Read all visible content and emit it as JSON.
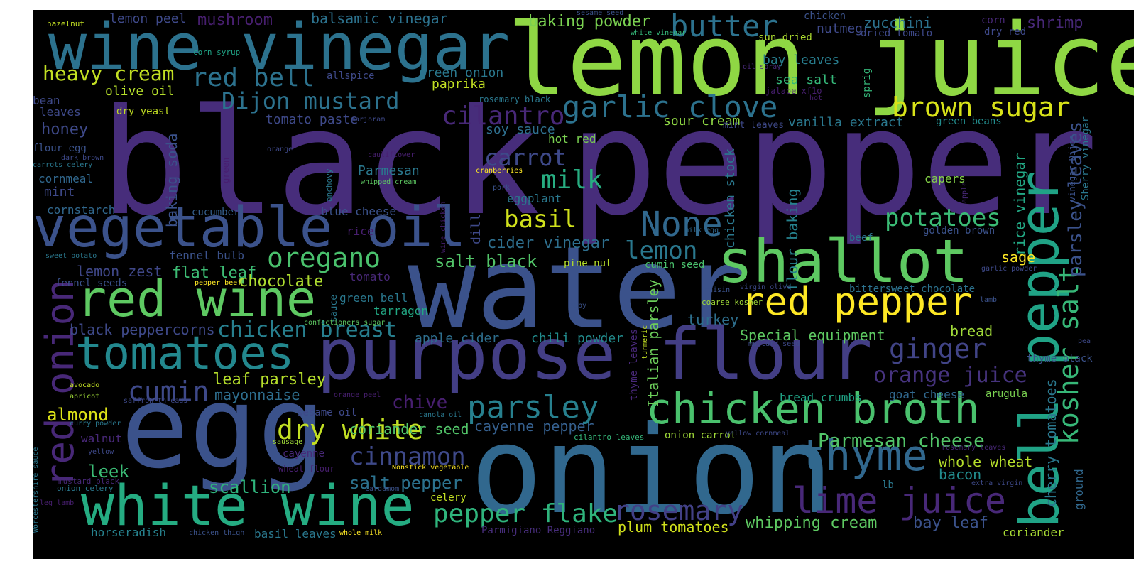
{
  "words": [
    {
      "text": "black",
      "color": "#472d7b"
    },
    {
      "text": "pepper",
      "color": "#472d7b"
    },
    {
      "text": "lemon juice",
      "color": "#8fd744"
    },
    {
      "text": "wine vinegar",
      "color": "#2c728e"
    },
    {
      "text": "water",
      "color": "#3b528b"
    },
    {
      "text": "egg",
      "color": "#3b528b"
    },
    {
      "text": "onion",
      "color": "#31688e"
    },
    {
      "text": "purpose flour",
      "color": "#433e85"
    },
    {
      "text": "vegetable oil",
      "color": "#3b528b"
    },
    {
      "text": "white wine",
      "color": "#25ac82"
    },
    {
      "text": "shallot",
      "color": "#5ec962"
    },
    {
      "text": "red wine",
      "color": "#5ec962"
    },
    {
      "text": "tomatoes",
      "color": "#23888e"
    },
    {
      "text": "chicken broth",
      "color": "#4ac16d"
    },
    {
      "text": "red pepper",
      "color": "#fde725"
    },
    {
      "text": "bell pepper",
      "color": "#20a386"
    },
    {
      "text": "red onion",
      "color": "#482878"
    },
    {
      "text": "thyme",
      "color": "#31688e"
    },
    {
      "text": "lime juice",
      "color": "#482878"
    },
    {
      "text": "butter",
      "color": "#2c728e"
    },
    {
      "text": "garlic clove",
      "color": "#2c728e"
    },
    {
      "text": "brown sugar",
      "color": "#d8e219"
    },
    {
      "text": "red bell",
      "color": "#2c728e"
    },
    {
      "text": "heavy cream",
      "color": "#c2df23"
    },
    {
      "text": "Dijon mustard",
      "color": "#2c728e"
    },
    {
      "text": "oregano",
      "color": "#4ac16d"
    },
    {
      "text": "None",
      "color": "#31688e"
    },
    {
      "text": "potatoes",
      "color": "#3bbb75"
    },
    {
      "text": "ginger",
      "color": "#414487"
    },
    {
      "text": "parsley",
      "color": "#27808e"
    },
    {
      "text": "dry white",
      "color": "#c2df23"
    },
    {
      "text": "cumin",
      "color": "#3e4989"
    },
    {
      "text": "cinnamon",
      "color": "#3e4989"
    },
    {
      "text": "rosemary",
      "color": "#424086"
    },
    {
      "text": "pepper flake",
      "color": "#2fb47c"
    },
    {
      "text": "milk",
      "color": "#27ad81"
    },
    {
      "text": "basil",
      "color": "#d0e11c"
    },
    {
      "text": "carrot",
      "color": "#3e4989"
    },
    {
      "text": "cilantro",
      "color": "#482878"
    },
    {
      "text": "lemon",
      "color": "#2a788e"
    },
    {
      "text": "kosher salt",
      "color": "#37b878"
    },
    {
      "text": "parsley leaves",
      "color": "#3b528b"
    },
    {
      "text": "orange juice",
      "color": "#46337e"
    },
    {
      "text": "Parmesan cheese",
      "color": "#52c569"
    },
    {
      "text": "chicken breast",
      "color": "#277f8e"
    },
    {
      "text": "salt black",
      "color": "#52c569"
    },
    {
      "text": "cider vinegar",
      "color": "#2e6f8e"
    },
    {
      "text": "chocolate",
      "color": "#addc30"
    },
    {
      "text": "flat leaf",
      "color": "#3dbc74"
    },
    {
      "text": "lemon zest",
      "color": "#3f4788"
    },
    {
      "text": "black peppercorns",
      "color": "#3e4989"
    },
    {
      "text": "honey",
      "color": "#3e4989"
    },
    {
      "text": "leaf parsley",
      "color": "#b5de2b"
    },
    {
      "text": "mayonnaise",
      "color": "#2e6e8e"
    },
    {
      "text": "almond",
      "color": "#dde318"
    },
    {
      "text": "chive",
      "color": "#481f70"
    },
    {
      "text": "coriander seed",
      "color": "#52c569"
    },
    {
      "text": "cayenne pepper",
      "color": "#355f8d"
    },
    {
      "text": "salt pepper",
      "color": "#2c728e"
    },
    {
      "text": "scallion",
      "color": "#2fb47c"
    },
    {
      "text": "leek",
      "color": "#3bbb75"
    },
    {
      "text": "whipping cream",
      "color": "#5ec962"
    },
    {
      "text": "plum tomatoes",
      "color": "#d0e11c"
    },
    {
      "text": "bay leaf",
      "color": "#3b528b"
    },
    {
      "text": "whole wheat",
      "color": "#b5de2b"
    },
    {
      "text": "bacon",
      "color": "#228c8d"
    },
    {
      "text": "Special equipment",
      "color": "#5ec962"
    },
    {
      "text": "bread",
      "color": "#a0da39"
    },
    {
      "text": "sage",
      "color": "#fde725"
    },
    {
      "text": "turkey",
      "color": "#2e6f8e"
    },
    {
      "text": "Italian parsley",
      "color": "#6ccd5a"
    },
    {
      "text": "chicken stock",
      "color": "#2a788e"
    },
    {
      "text": "flour baking",
      "color": "#26828e"
    },
    {
      "text": "rice vinegar",
      "color": "#22a884"
    },
    {
      "text": "cherry tomatoes",
      "color": "#2a788e"
    },
    {
      "text": "baking soda",
      "color": "#3b528b"
    },
    {
      "text": "tomato paste",
      "color": "#3e4989"
    },
    {
      "text": "soy sauce",
      "color": "#2e6f8e"
    },
    {
      "text": "sour cream",
      "color": "#8fd744"
    },
    {
      "text": "vanilla extract",
      "color": "#2a788e"
    },
    {
      "text": "baking powder",
      "color": "#7ad151"
    },
    {
      "text": "zucchini",
      "color": "#2c728e"
    },
    {
      "text": "shrimp",
      "color": "#482878"
    },
    {
      "text": "balsamic vinegar",
      "color": "#2c728e"
    },
    {
      "text": "mushroom",
      "color": "#481f70"
    },
    {
      "text": "lemon peel",
      "color": "#3e4989"
    },
    {
      "text": "green onion",
      "color": "#2a788e"
    },
    {
      "text": "paprika",
      "color": "#c2df23"
    },
    {
      "text": "bay leaves",
      "color": "#287d8e"
    },
    {
      "text": "sea salt",
      "color": "#35b779"
    },
    {
      "text": "nutmeg",
      "color": "#3e4989"
    },
    {
      "text": "olive oil",
      "color": "#b5de2b"
    },
    {
      "text": "eggplant",
      "color": "#2a788e"
    },
    {
      "text": "Parmesan",
      "color": "#2a788e"
    },
    {
      "text": "hot red",
      "color": "#7ad151"
    },
    {
      "text": "capers",
      "color": "#86d549"
    },
    {
      "text": "goat cheese",
      "color": "#31688e"
    },
    {
      "text": "bread crumbs",
      "color": "#20a486"
    },
    {
      "text": "apple cider",
      "color": "#2e6f8e"
    },
    {
      "text": "chili powder",
      "color": "#228c8d"
    },
    {
      "text": "tarragon",
      "color": "#22a884"
    },
    {
      "text": "tomato",
      "color": "#482878"
    },
    {
      "text": "green bell",
      "color": "#2a788e"
    },
    {
      "text": "blue cheese",
      "color": "#3b528b"
    },
    {
      "text": "cucumber",
      "color": "#355f8d"
    },
    {
      "text": "cornstarch",
      "color": "#31688e"
    },
    {
      "text": "mint",
      "color": "#3e4989"
    },
    {
      "text": "cornmeal",
      "color": "#31688e"
    },
    {
      "text": "rice",
      "color": "#481f70"
    },
    {
      "text": "dill",
      "color": "#3e4989"
    },
    {
      "text": "fennel bulb",
      "color": "#3b528b"
    },
    {
      "text": "fennel seeds",
      "color": "#3b528b"
    },
    {
      "text": "horseradish",
      "color": "#26828e"
    },
    {
      "text": "basil leaves",
      "color": "#2a788e"
    },
    {
      "text": "Parmigiano Reggiano",
      "color": "#472d7b"
    },
    {
      "text": "coriander",
      "color": "#a8db34"
    },
    {
      "text": "beef",
      "color": "#2c728e"
    },
    {
      "text": "golden brown",
      "color": "#3b528b"
    },
    {
      "text": "bittersweet chocolate",
      "color": "#2c728e"
    },
    {
      "text": "cumin seed",
      "color": "#4ac16d"
    },
    {
      "text": "pine nut",
      "color": "#b5de2b"
    },
    {
      "text": "sesame oil",
      "color": "#3e4989"
    },
    {
      "text": "walnut",
      "color": "#482878"
    },
    {
      "text": "cayenne",
      "color": "#482878"
    },
    {
      "text": "celery",
      "color": "#c2df23"
    },
    {
      "text": "lb",
      "color": "#2a788e"
    },
    {
      "text": "onion carrot",
      "color": "#a0da39"
    },
    {
      "text": "thyme leaves",
      "color": "#482878"
    },
    {
      "text": "ground",
      "color": "#31688e"
    },
    {
      "text": "arugula",
      "color": "#7ad151"
    },
    {
      "text": "thyme black",
      "color": "#3b528b"
    },
    {
      "text": "leaves",
      "color": "#3e4989"
    },
    {
      "text": "bean",
      "color": "#3e4989"
    },
    {
      "text": "dry yeast",
      "color": "#c2df23"
    },
    {
      "text": "flour egg",
      "color": "#3b528b"
    },
    {
      "text": "allspice",
      "color": "#3e4989"
    },
    {
      "text": "sun dried",
      "color": "#addc30"
    },
    {
      "text": "dried tomato",
      "color": "#3e4989"
    },
    {
      "text": "chicken",
      "color": "#3b528b"
    },
    {
      "text": "corn",
      "color": "#482878"
    },
    {
      "text": "dry red",
      "color": "#3e4989"
    },
    {
      "text": "green beans",
      "color": "#228c8d"
    },
    {
      "text": "mint leaves",
      "color": "#3e4989"
    },
    {
      "text": "sprig",
      "color": "#35b779"
    },
    {
      "text": "Sherry vinegar",
      "color": "#2a788e"
    },
    {
      "text": "vinegar Dijon",
      "color": "#3b528b"
    },
    {
      "text": "apple",
      "color": "#482878"
    },
    {
      "text": "rosemary black",
      "color": "#2a788e"
    },
    {
      "text": "marjoram",
      "color": "#3e4989"
    },
    {
      "text": "jalape xf1o",
      "color": "#481f70"
    },
    {
      "text": "oil spray",
      "color": "#482878"
    },
    {
      "text": "hot",
      "color": "#481f70"
    },
    {
      "text": "hazelnut",
      "color": "#c2df23"
    },
    {
      "text": "corn syrup",
      "color": "#20a486"
    },
    {
      "text": "sesame seed",
      "color": "#3b528b"
    },
    {
      "text": "white vinegar",
      "color": "#35b779"
    },
    {
      "text": "dark brown",
      "color": "#3e4989"
    },
    {
      "text": "carrots celery",
      "color": "#2a788e"
    },
    {
      "text": "green",
      "color": "#481f70"
    },
    {
      "text": "orange",
      "color": "#3e4989"
    },
    {
      "text": "cauliflower",
      "color": "#481f70"
    },
    {
      "text": "cranberries",
      "color": "#fde725"
    },
    {
      "text": "whipped cream",
      "color": "#5ec962"
    },
    {
      "text": "anchovy",
      "color": "#2a788e"
    },
    {
      "text": "pork",
      "color": "#3b528b"
    },
    {
      "text": "milk egg",
      "color": "#31688e"
    },
    {
      "text": "wine chicken",
      "color": "#481f70"
    },
    {
      "text": "sweet potato",
      "color": "#2a788e"
    },
    {
      "text": "pepper beef",
      "color": "#fde725"
    },
    {
      "text": "sauce",
      "color": "#2a788e"
    },
    {
      "text": "raisin",
      "color": "#3b528b"
    },
    {
      "text": "virgin olive",
      "color": "#3e4989"
    },
    {
      "text": "coarse kosher",
      "color": "#a0da39"
    },
    {
      "text": "baby",
      "color": "#3b528b"
    },
    {
      "text": "lamb",
      "color": "#3b528b"
    },
    {
      "text": "garlic powder",
      "color": "#3e4989"
    },
    {
      "text": "confectioners sugar",
      "color": "#5ec962"
    },
    {
      "text": "mustard seed",
      "color": "#3e4989"
    },
    {
      "text": "pea",
      "color": "#3e4989"
    },
    {
      "text": "turmeric",
      "color": "#c2df23"
    },
    {
      "text": "avocado",
      "color": "#c2df23"
    },
    {
      "text": "apricot",
      "color": "#a0da39"
    },
    {
      "text": "saffron threads",
      "color": "#3e4989"
    },
    {
      "text": "orange peel",
      "color": "#481f70"
    },
    {
      "text": "canola oil",
      "color": "#2a788e"
    },
    {
      "text": "curry powder",
      "color": "#2a788e"
    },
    {
      "text": "yellow",
      "color": "#3e4989"
    },
    {
      "text": "sausage",
      "color": "#a0da39"
    },
    {
      "text": "cilantro leaves",
      "color": "#35b779"
    },
    {
      "text": "yellow cornmeal",
      "color": "#3e4989"
    },
    {
      "text": "rosemary leaves",
      "color": "#482878"
    },
    {
      "text": "wheat flour",
      "color": "#481f70"
    },
    {
      "text": "Nonstick vegetable",
      "color": "#fde725"
    },
    {
      "text": "cardamom",
      "color": "#3b528b"
    },
    {
      "text": "extra virgin",
      "color": "#3e4989"
    },
    {
      "text": "mustard black",
      "color": "#482878"
    },
    {
      "text": "onion celery",
      "color": "#2a788e"
    },
    {
      "text": "leg lamb",
      "color": "#481f70"
    },
    {
      "text": "Worcestershire sauce",
      "color": "#2a788e"
    },
    {
      "text": "chicken thigh",
      "color": "#3b528b"
    },
    {
      "text": "whole milk",
      "color": "#fde725"
    }
  ]
}
